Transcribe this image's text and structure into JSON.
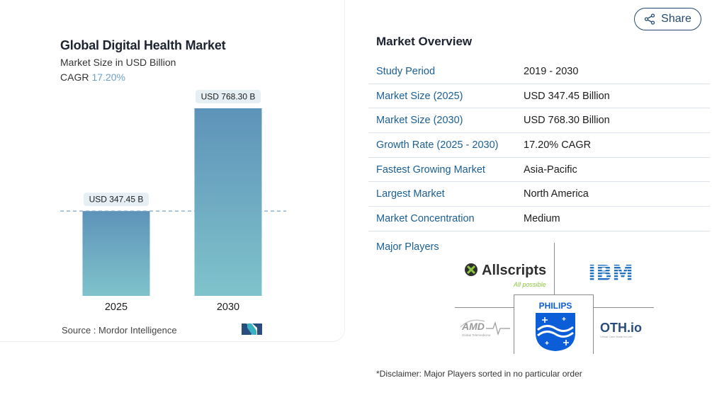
{
  "chart_data": {
    "type": "bar",
    "title": "Global Digital Health Market",
    "subtitle": "Market Size in USD Billion",
    "cagr_label": "CAGR",
    "cagr_value": "17.20%",
    "categories": [
      "2025",
      "2030"
    ],
    "values": [
      347.45,
      768.3
    ],
    "data_labels": [
      "USD 347.45 B",
      "USD 768.30 B"
    ],
    "ylim": [
      0,
      768.3
    ],
    "grid": false,
    "legend": "none",
    "colors": {
      "bar_top": "#5e93b9",
      "bar_bottom": "#7fc3cb",
      "dashed_line": "#7aa7c7",
      "label_bg": "#e6f0f4"
    }
  },
  "source": {
    "label": "Source :",
    "value": "Mordor Intelligence",
    "logo_icon": "mordor-intelligence-logo-icon"
  },
  "share": {
    "label": "Share",
    "icon": "share-icon"
  },
  "overview": {
    "title": "Market Overview",
    "rows": [
      {
        "label": "Study Period",
        "value": "2019 - 2030"
      },
      {
        "label": "Market Size (2025)",
        "value": "USD 347.45 Billion"
      },
      {
        "label": "Market Size (2030)",
        "value": "USD 768.30 Billion"
      },
      {
        "label": "Growth Rate (2025 - 2030)",
        "value": "17.20% CAGR"
      },
      {
        "label": "Fastest Growing Market",
        "value": "Asia-Pacific"
      },
      {
        "label": "Largest Market",
        "value": "North America"
      },
      {
        "label": "Market Concentration",
        "value": "Medium"
      }
    ]
  },
  "players": {
    "title": "Major Players",
    "logos": [
      {
        "name": "Allscripts",
        "tagline": "All possible"
      },
      {
        "name": "IBM"
      },
      {
        "name": "PHILIPS"
      },
      {
        "name": "AMD",
        "tagline": "Global Telemedicine"
      },
      {
        "name": "OTH.io",
        "tagline": "Virtual Care Made for Life"
      }
    ]
  },
  "disclaimer": "*Disclaimer: Major Players sorted in no particular order"
}
